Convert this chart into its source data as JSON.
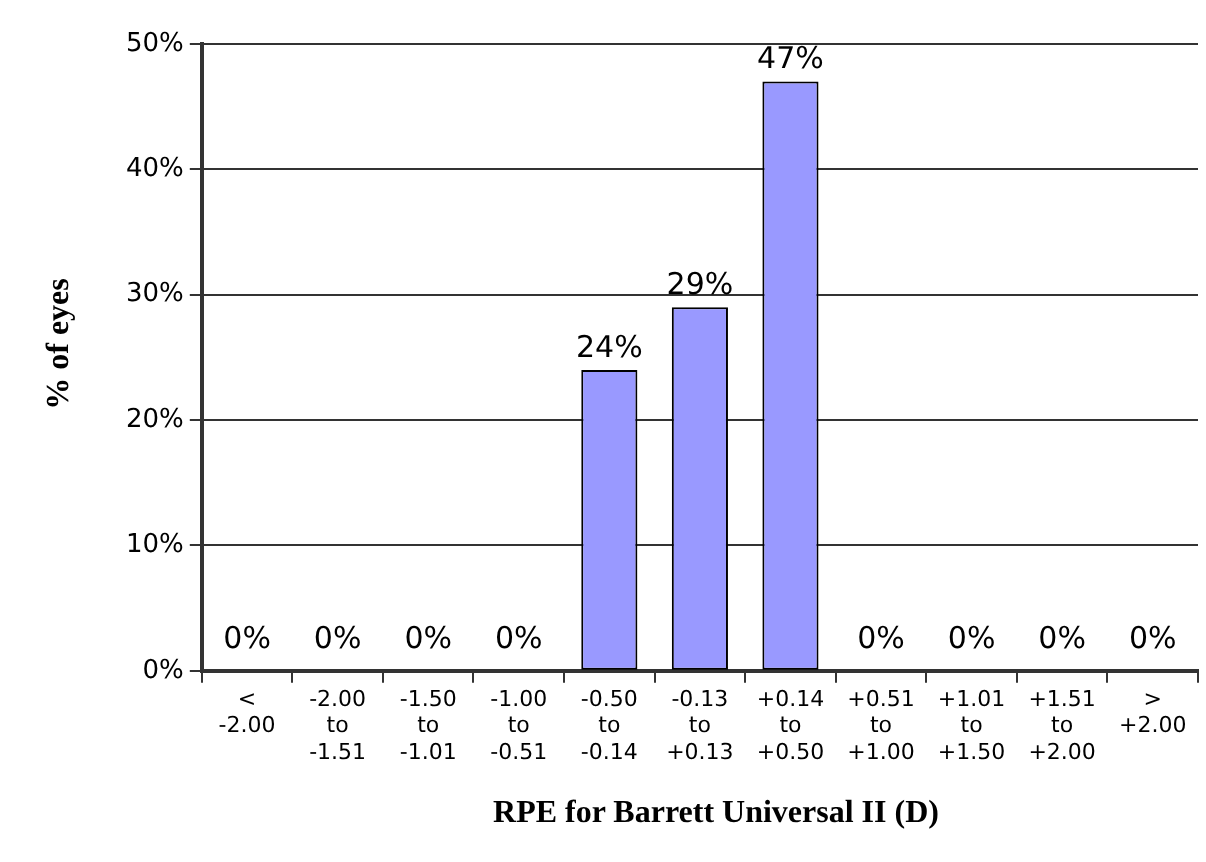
{
  "chart_data": {
    "type": "bar",
    "xlabel": "RPE for Barrett Universal II (D)",
    "ylabel": "% of eyes",
    "categories": [
      "<\n-2.00",
      "-2.00\nto\n-1.51",
      "-1.50\nto\n-1.01",
      "-1.00\nto\n-0.51",
      "-0.50\nto\n-0.14",
      "-0.13\nto\n+0.13",
      "+0.14\nto\n+0.50",
      "+0.51\nto\n+1.00",
      "+1.01\nto\n+1.50",
      "+1.51\nto\n+2.00",
      ">\n+2.00"
    ],
    "values": [
      0,
      0,
      0,
      0,
      24,
      29,
      47,
      0,
      0,
      0,
      0
    ],
    "value_labels": [
      "0%",
      "0%",
      "0%",
      "0%",
      "24%",
      "29%",
      "47%",
      "0%",
      "0%",
      "0%",
      "0%"
    ],
    "color": "#9999ff",
    "ylim": [
      0,
      50
    ],
    "yticks": [
      {
        "value": 0,
        "label": "0%"
      },
      {
        "value": 10,
        "label": "10%"
      },
      {
        "value": 20,
        "label": "20%"
      },
      {
        "value": 30,
        "label": "30%"
      },
      {
        "value": 40,
        "label": "40%"
      },
      {
        "value": 50,
        "label": "50%"
      }
    ],
    "grid": "y",
    "legend": false
  }
}
